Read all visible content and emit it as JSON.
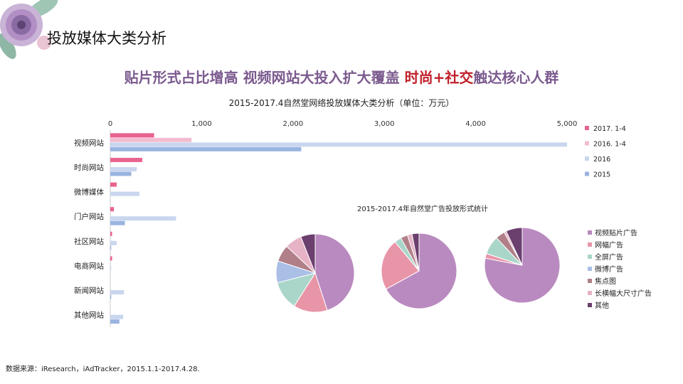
{
  "page": {
    "title": "投放媒体大类分析",
    "headline_part1": "贴片形式占比增高 视频网站大投入扩大覆盖 ",
    "headline_highlight": "时尚+社交",
    "headline_part2": "触达核心人群",
    "source": "数据来源：iResearch，iAdTracker，2015.1.1-2017.4.28."
  },
  "colors": {
    "headline": "#7b5a8e",
    "highlight": "#c0202a",
    "s2017": "#e8638e",
    "s2016_1_4": "#f3bcd0",
    "s2016": "#c9d6ee",
    "s2015": "#9ab4e0"
  },
  "chart_data": [
    {
      "type": "bar",
      "orientation": "horizontal",
      "title": "2015-2017.4自然堂网络投放媒体大类分析（单位：万元）",
      "categories": [
        "视频网站",
        "时尚网站",
        "微博媒体",
        "门户网站",
        "社区网站",
        "电商网站",
        "新闻网站",
        "其他网站"
      ],
      "xticks": [
        "0",
        "1,000",
        "2,000",
        "3,000",
        "4,000",
        "5,000"
      ],
      "xlim": [
        0,
        5000
      ],
      "legend_position": "right",
      "series": [
        {
          "name": "2017. 1-4",
          "color": "#e8638e",
          "values": [
            480,
            350,
            70,
            40,
            20,
            20,
            0,
            0
          ]
        },
        {
          "name": "2016. 1-4",
          "color": "#f3bcd0",
          "values": [
            890,
            0,
            0,
            0,
            0,
            0,
            0,
            0
          ]
        },
        {
          "name": "2016",
          "color": "#c9d6ee",
          "values": [
            5000,
            290,
            320,
            720,
            70,
            10,
            150,
            140
          ]
        },
        {
          "name": "2015",
          "color": "#9ab4e0",
          "values": [
            2090,
            230,
            0,
            160,
            10,
            0,
            10,
            100
          ]
        }
      ]
    },
    {
      "type": "pie",
      "title": "2015-2017.4年自然堂广告投放形式统计",
      "categories": [
        "视频贴片广告",
        "网幅广告",
        "全屏广告",
        "微博广告",
        "焦点图",
        "长横幅大尺寸广告",
        "其他"
      ],
      "colors": [
        "#b98abf",
        "#e895a8",
        "#a9d6c9",
        "#a9bfe6",
        "#b07f88",
        "#e6b3c6",
        "#6b3f6e"
      ],
      "legend_position": "right",
      "pies": [
        {
          "values": [
            45,
            14,
            12,
            9,
            7,
            7,
            6
          ]
        },
        {
          "values": [
            67,
            22,
            3,
            0,
            3,
            2,
            3
          ]
        },
        {
          "values": [
            78,
            2,
            8,
            0,
            4,
            1,
            7
          ]
        }
      ]
    }
  ]
}
